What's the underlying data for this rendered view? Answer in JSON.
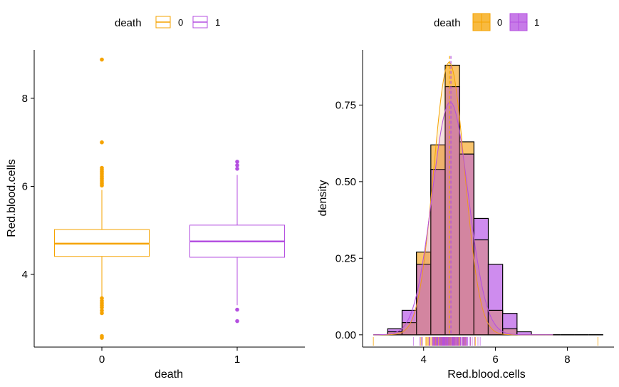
{
  "colors": {
    "group0": "#F5A300",
    "group1": "#B44FE0",
    "overlap": "#D48AAE",
    "axis": "#000000"
  },
  "chart_data": [
    {
      "type": "box",
      "legend": {
        "title": "death",
        "entries": [
          "0",
          "1"
        ],
        "placement": "top"
      },
      "xlabel": "death",
      "ylabel": "Red.blood.cells",
      "categories": [
        "0",
        "1"
      ],
      "yticks": [
        4,
        6,
        8
      ],
      "ylim": [
        2.35,
        9.1
      ],
      "grid": false,
      "boxes": [
        {
          "group": "0",
          "q1": 4.41,
          "median": 4.7,
          "q3": 5.02,
          "whisker_low": 3.5,
          "whisker_high": 5.92,
          "outliers": [
            8.88,
            7.0,
            6.42,
            6.38,
            6.34,
            6.3,
            6.26,
            6.22,
            6.18,
            6.14,
            6.1,
            6.06,
            6.02,
            3.46,
            3.4,
            3.35,
            3.3,
            3.25,
            3.18,
            3.12,
            2.6,
            2.56
          ]
        },
        {
          "group": "1",
          "q1": 4.39,
          "median": 4.75,
          "q3": 5.12,
          "whisker_low": 3.3,
          "whisker_high": 6.26,
          "outliers": [
            6.56,
            6.48,
            6.4,
            3.2,
            2.94
          ]
        }
      ]
    },
    {
      "type": "histogram",
      "legend": {
        "title": "death",
        "entries": [
          "0",
          "1"
        ],
        "placement": "top"
      },
      "xlabel": "Red.blood.cells",
      "ylabel": "density",
      "xticks": [
        4,
        6,
        8
      ],
      "yticks": [
        "0.00",
        "0.25",
        "0.50",
        "0.75"
      ],
      "xlim": [
        2.3,
        9.3
      ],
      "ylim": [
        -0.04,
        0.93
      ],
      "bin_width": 0.4,
      "bin_starts": [
        2.6,
        3.0,
        3.4,
        3.8,
        4.2,
        4.6,
        5.0,
        5.4,
        5.8,
        6.2,
        6.6,
        7.0,
        7.4,
        7.8,
        8.2,
        8.6
      ],
      "series": [
        {
          "name": "0",
          "density": [
            0.0,
            0.01,
            0.04,
            0.27,
            0.62,
            0.88,
            0.63,
            0.31,
            0.08,
            0.02,
            0.0,
            0.0,
            0.0,
            0.0,
            0.0,
            0.0
          ]
        },
        {
          "name": "1",
          "density": [
            0.0,
            0.02,
            0.08,
            0.23,
            0.54,
            0.81,
            0.59,
            0.38,
            0.23,
            0.07,
            0.01,
            0.0,
            0.0,
            0.0,
            0.0,
            0.0
          ]
        }
      ],
      "means": [
        4.72,
        4.76
      ],
      "density_peaks": [
        {
          "name": "0",
          "mean": 4.71,
          "sd": 0.43,
          "peak": 0.89
        },
        {
          "name": "1",
          "mean": 4.74,
          "sd": 0.5,
          "peak": 0.76
        }
      ]
    }
  ]
}
